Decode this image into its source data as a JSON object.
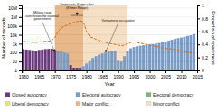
{
  "chart_data": {
    "type": "bar",
    "xlabel": "Year",
    "ylabel": "Number of records",
    "y2label": "Proportion of specimens",
    "log": "y",
    "grid": true,
    "x": [
      1960,
      1961,
      1962,
      1963,
      1964,
      1965,
      1966,
      1967,
      1968,
      1969,
      1970,
      1971,
      1972,
      1973,
      1974,
      1975,
      1976,
      1977,
      1978,
      1979,
      1980,
      1981,
      1982,
      1983,
      1984,
      1985,
      1986,
      1987,
      1988,
      1989,
      1990,
      1991,
      1992,
      1993,
      1994,
      1995,
      1996,
      1997,
      1998,
      1999,
      2000,
      2001,
      2002,
      2003,
      2004,
      2005,
      2006,
      2007,
      2008,
      2009,
      2010,
      2011,
      2012,
      2013,
      2014
    ],
    "xlim": [
      1959.5,
      2015
    ],
    "xticks": [
      1960,
      1965,
      1970,
      1975,
      1980,
      1985,
      1990,
      1995,
      2000,
      2005,
      2010,
      2015
    ],
    "ylim": [
      1,
      20000000
    ],
    "yticks": [
      1,
      10,
      100,
      {
        "value": 1000,
        "label": "1k"
      },
      {
        "value": 10000,
        "label": "10k"
      },
      {
        "value": 100000,
        "label": "100k"
      },
      {
        "value": 1000000,
        "label": "1M"
      },
      {
        "value": 10000000,
        "label": "10M"
      }
    ],
    "y2lim": [
      0,
      1.0
    ],
    "y2ticks": [
      0,
      0.2,
      0.4,
      0.6,
      0.8,
      1
    ],
    "series": [
      {
        "type": "bar",
        "values": [
          250,
          220,
          200,
          180,
          160,
          200,
          220,
          250,
          260,
          280,
          200,
          150,
          130,
          100,
          80,
          4,
          2,
          2,
          2,
          3,
          6,
          10,
          25,
          40,
          60,
          80,
          100,
          130,
          160,
          150,
          12,
          10,
          40,
          150,
          300,
          420,
          520,
          600,
          680,
          750,
          820,
          900,
          1000,
          1200,
          1500,
          1800,
          2200,
          2800,
          3500,
          4200,
          5000,
          6000,
          7500,
          9000,
          12000
        ],
        "colors": [
          "#6b3a7d",
          "#6b3a7d",
          "#6b3a7d",
          "#6b3a7d",
          "#6b3a7d",
          "#6b3a7d",
          "#6b3a7d",
          "#6b3a7d",
          "#6b3a7d",
          "#6b3a7d",
          "#6b3a7d",
          "#7a9cc7",
          "#7a9cc7",
          "#7a9cc7",
          "#7a9cc7",
          "#6b3a7d",
          "#6b3a7d",
          "#6b3a7d",
          "#6b3a7d",
          "#7a9cc7",
          "#7a9cc7",
          "#7a9cc7",
          "#7a9cc7",
          "#7a9cc7",
          "#7a9cc7",
          "#7a9cc7",
          "#7a9cc7",
          "#7a9cc7",
          "#7a9cc7",
          "#7a9cc7",
          "#7a9cc7",
          "#7a9cc7",
          "#7a9cc7",
          "#7a9cc7",
          "#7a9cc7",
          "#7a9cc7",
          "#7a9cc7",
          "#7a9cc7",
          "#7a9cc7",
          "#7a9cc7",
          "#7a9cc7",
          "#7a9cc7",
          "#7a9cc7",
          "#7a9cc7",
          "#7a9cc7",
          "#7a9cc7",
          "#7a9cc7",
          "#7a9cc7",
          "#7a9cc7",
          "#7a9cc7",
          "#7a9cc7",
          "#7a9cc7",
          "#7a9cc7",
          "#7a9cc7",
          "#7a9cc7"
        ]
      },
      {
        "type": "line",
        "axis": "y2",
        "color": "#d4700a",
        "line_style": "dashed",
        "values": [
          0.45,
          0.44,
          0.44,
          0.43,
          0.43,
          0.44,
          0.44,
          0.45,
          0.45,
          0.46,
          0.5,
          0.6,
          0.65,
          0.68,
          0.7,
          0.72,
          0.74,
          0.75,
          0.76,
          0.75,
          0.6,
          0.52,
          0.5,
          0.48,
          0.46,
          0.44,
          0.43,
          0.42,
          0.41,
          0.4,
          0.39,
          0.38,
          0.39,
          0.41,
          0.43,
          0.44,
          0.43,
          0.42,
          0.41,
          0.4,
          0.39,
          0.38,
          0.37,
          0.36,
          0.35,
          0.34,
          0.33,
          0.33,
          0.32,
          0.31,
          0.3,
          0.29,
          0.28,
          0.27,
          0.26
        ]
      }
    ],
    "spans": [
      {
        "name": "Major conflict",
        "start": 1970,
        "end": 1979,
        "color": "#e8b88a"
      },
      {
        "name": "Minor conflict",
        "start": 1979,
        "end": 1993,
        "color": "#f5dfc5"
      }
    ],
    "regimes": [
      {
        "name": "Closed autocracy",
        "color": "#6b3a7d"
      },
      {
        "name": "Electoral autocracy",
        "color": "#7a9cc7"
      },
      {
        "name": "Electoral democracy",
        "color": "#7ab87a"
      },
      {
        "name": "Liberal democracy",
        "color": "#e8e870"
      }
    ],
    "annotations": [
      {
        "text": "Military coup\noverthrows the national\ngovernment",
        "x": 1970,
        "y": 120,
        "text_x": 1966,
        "text_y": 300000
      },
      {
        "text": "Democratic Kampuchea\n(Khmer Rouge)",
        "x_start": 1975,
        "x_end": 1979,
        "y": 1500000,
        "text_x": 1977,
        "text_y": 4000000
      },
      {
        "text": "Vietnamese occupation",
        "x": 1986,
        "y": 100,
        "text_x": 1990,
        "text_y": 200000
      }
    ]
  }
}
